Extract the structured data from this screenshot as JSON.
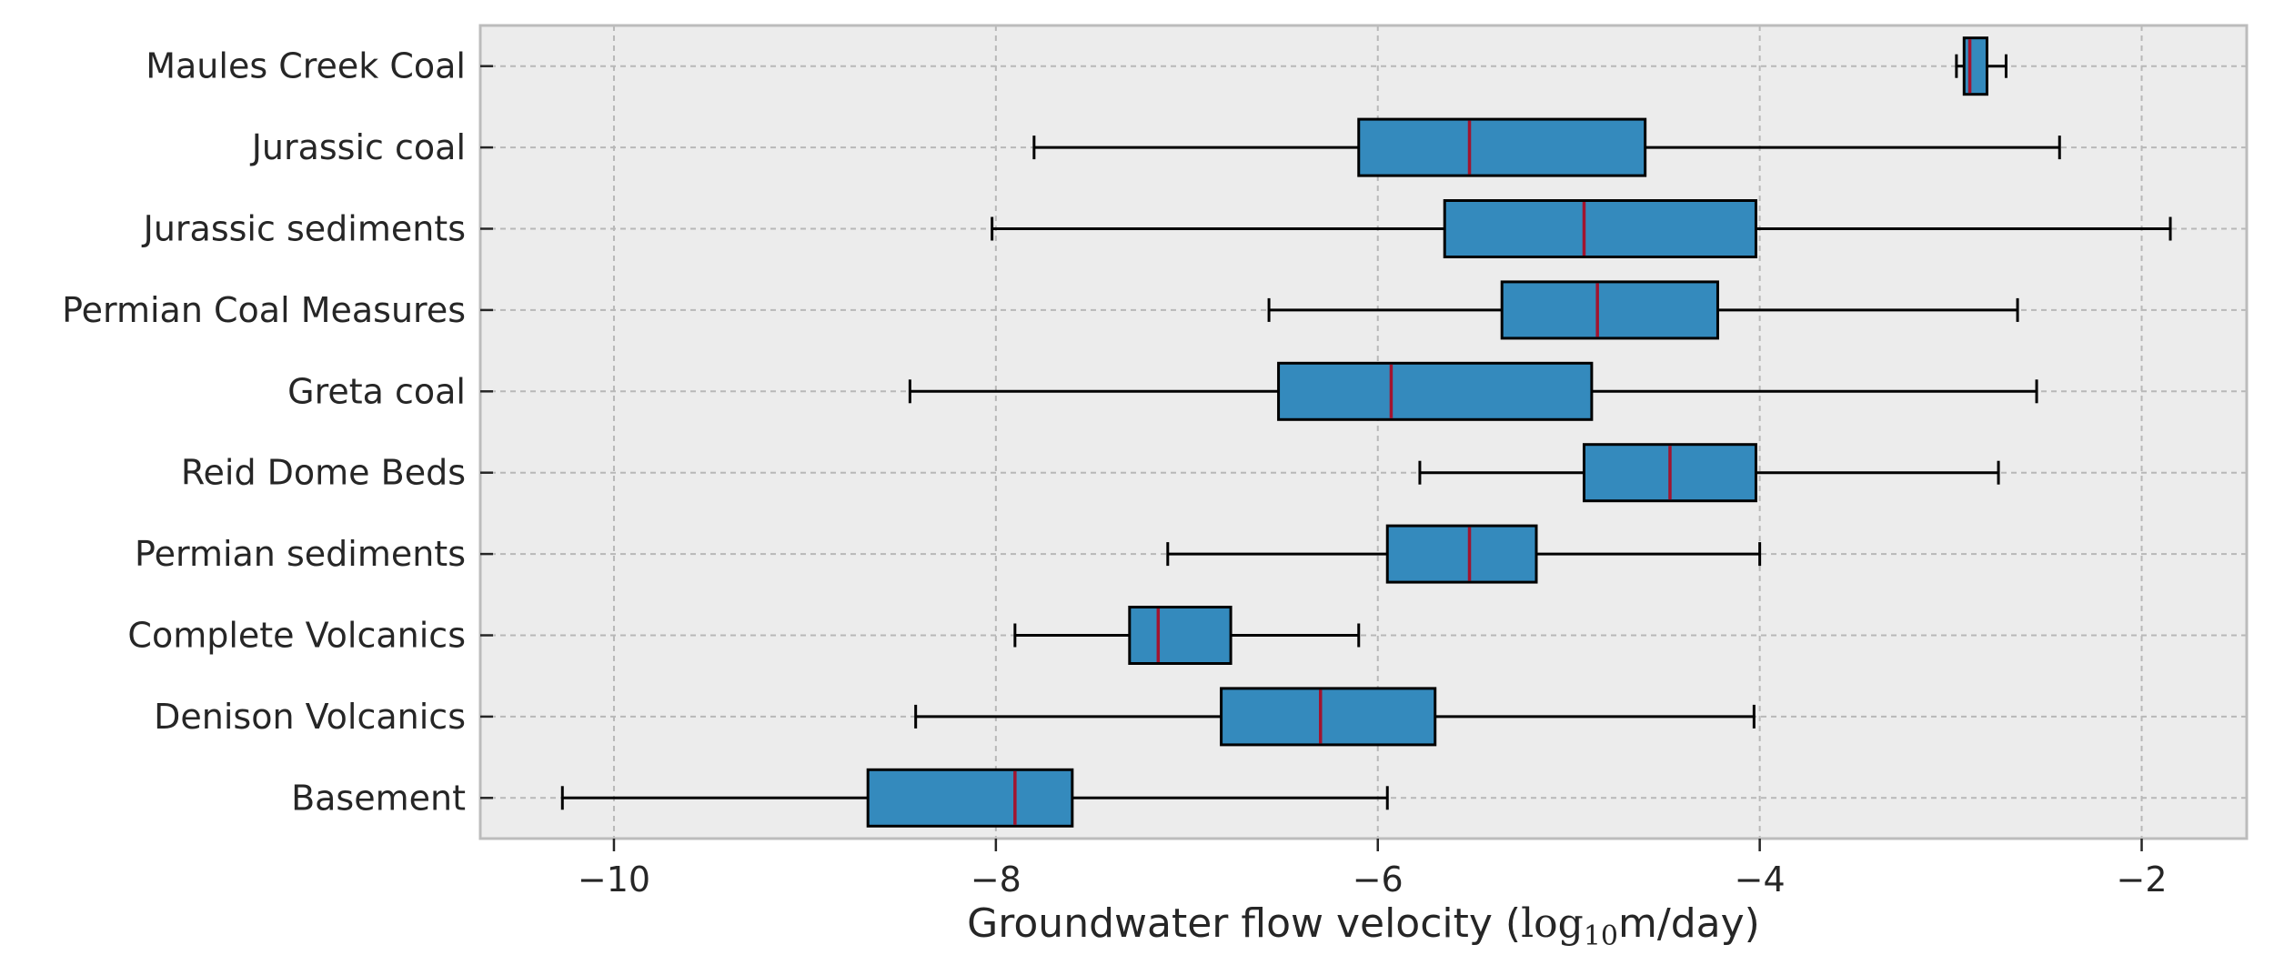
{
  "chart_data": {
    "type": "boxplot",
    "orientation": "horizontal",
    "title": "",
    "xlabel_prefix": "Groundwater flow velocity (",
    "xlabel_log": "log",
    "xlabel_sub": "10",
    "xlabel_suffix": "m/day)",
    "ylabel": "",
    "xlim": [
      -10.7,
      -1.45
    ],
    "xticks": [
      -10,
      -8,
      -6,
      -4,
      -2
    ],
    "xtick_labels": [
      "−10",
      "−8",
      "−6",
      "−4",
      "−2"
    ],
    "grid": true,
    "colors": {
      "box_fill": "#348abd",
      "median": "#a2142f",
      "edge": "#000000",
      "background": "#ececec",
      "grid": "#b8b8b8",
      "frame": "#bcbcbc"
    },
    "categories": [
      "Maules Creek Coal",
      "Jurassic coal",
      "Jurassic sediments",
      "Permian Coal Measures",
      "Greta coal",
      "Reid Dome Beds",
      "Permian sediments",
      "Complete Volcanics",
      "Denison Volcanics",
      "Basement"
    ],
    "boxes": [
      {
        "label": "Maules Creek Coal",
        "whisker_low": -2.97,
        "q1": -2.93,
        "median": -2.9,
        "q3": -2.81,
        "whisker_high": -2.71
      },
      {
        "label": "Jurassic coal",
        "whisker_low": -7.8,
        "q1": -6.1,
        "median": -5.52,
        "q3": -4.6,
        "whisker_high": -2.43
      },
      {
        "label": "Jurassic sediments",
        "whisker_low": -8.02,
        "q1": -5.65,
        "median": -4.92,
        "q3": -4.02,
        "whisker_high": -1.85
      },
      {
        "label": "Permian Coal Measures",
        "whisker_low": -6.57,
        "q1": -5.35,
        "median": -4.85,
        "q3": -4.22,
        "whisker_high": -2.65
      },
      {
        "label": "Greta coal",
        "whisker_low": -8.45,
        "q1": -6.52,
        "median": -5.93,
        "q3": -4.88,
        "whisker_high": -2.55
      },
      {
        "label": "Reid Dome Beds",
        "whisker_low": -5.78,
        "q1": -4.92,
        "median": -4.47,
        "q3": -4.02,
        "whisker_high": -2.75
      },
      {
        "label": "Permian sediments",
        "whisker_low": -7.1,
        "q1": -5.95,
        "median": -5.52,
        "q3": -5.17,
        "whisker_high": -4.0
      },
      {
        "label": "Complete Volcanics",
        "whisker_low": -7.9,
        "q1": -7.3,
        "median": -7.15,
        "q3": -6.77,
        "whisker_high": -6.1
      },
      {
        "label": "Denison Volcanics",
        "whisker_low": -8.42,
        "q1": -6.82,
        "median": -6.3,
        "q3": -5.7,
        "whisker_high": -4.03
      },
      {
        "label": "Basement",
        "whisker_low": -10.27,
        "q1": -8.67,
        "median": -7.9,
        "q3": -7.6,
        "whisker_high": -5.95
      }
    ]
  }
}
